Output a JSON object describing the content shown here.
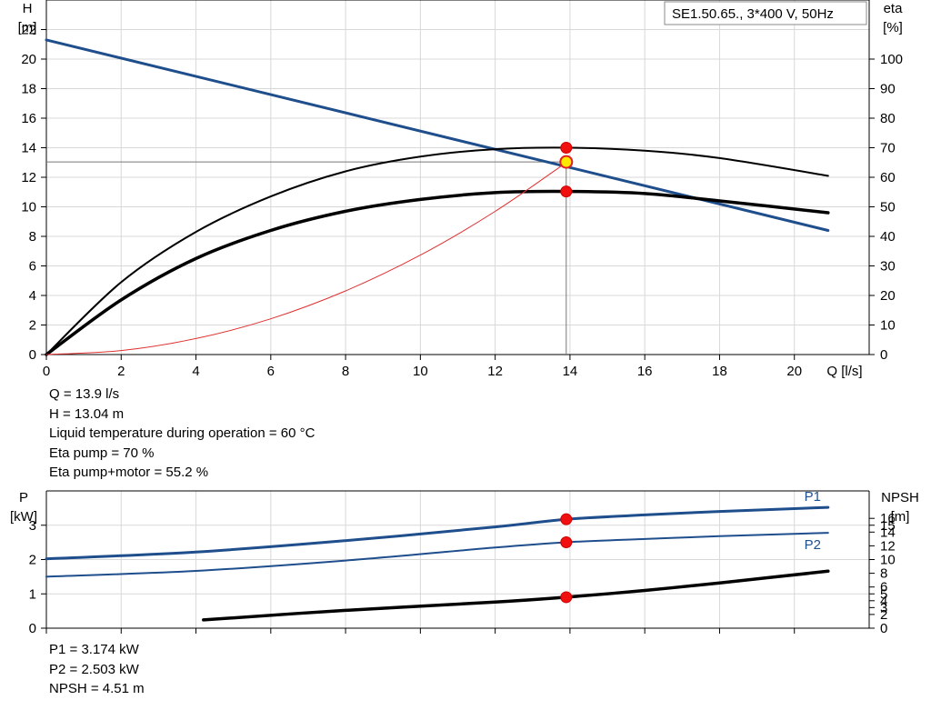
{
  "chart_data": [
    {
      "type": "line",
      "title_box": "SE1.50.65., 3*400 V, 50Hz",
      "left_axis": {
        "label": "H",
        "unit": "[m]",
        "ylim": [
          0,
          24
        ],
        "ticks": [
          0,
          2,
          4,
          6,
          8,
          10,
          12,
          14,
          16,
          18,
          20,
          22
        ]
      },
      "right_axis": {
        "label": "eta",
        "unit": "[%]",
        "ylim": [
          0,
          120
        ],
        "ticks": [
          0,
          10,
          20,
          30,
          40,
          50,
          60,
          70,
          80,
          90,
          100
        ]
      },
      "x_axis": {
        "label": "Q [l/s]",
        "xlim": [
          0,
          22
        ],
        "ticks": [
          0,
          2,
          4,
          6,
          8,
          10,
          12,
          14,
          16,
          18,
          20
        ]
      },
      "grid": true,
      "series": [
        {
          "axis": "left",
          "color": "#1f4e8c",
          "points": [
            [
              0,
              21.3
            ],
            [
              20.9,
              8.4
            ]
          ]
        },
        {
          "axis": "right",
          "color": "#000000",
          "points": [
            [
              0,
              0
            ],
            [
              2,
              24.5
            ],
            [
              4,
              41.5
            ],
            [
              6,
              53.5
            ],
            [
              8,
              62
            ],
            [
              10,
              67
            ],
            [
              12,
              69.5
            ],
            [
              14,
              70
            ],
            [
              16,
              69
            ],
            [
              18,
              66.5
            ],
            [
              20.9,
              60.5
            ]
          ]
        },
        {
          "axis": "right",
          "color": "#000000",
          "points": [
            [
              0,
              0
            ],
            [
              2,
              18.5
            ],
            [
              4,
              32.5
            ],
            [
              6,
              42
            ],
            [
              8,
              48.5
            ],
            [
              10,
              52.5
            ],
            [
              12,
              54.8
            ],
            [
              14,
              55.2
            ],
            [
              16,
              54.5
            ],
            [
              18,
              52
            ],
            [
              20.9,
              48
            ]
          ]
        },
        {
          "axis": "left",
          "color": "#e03030",
          "points": [
            [
              0,
              0
            ],
            [
              2,
              0.27
            ],
            [
              4,
              1.08
            ],
            [
              6,
              2.42
            ],
            [
              8,
              4.31
            ],
            [
              10,
              6.73
            ],
            [
              12,
              9.69
            ],
            [
              13.9,
              13.0
            ]
          ]
        }
      ],
      "markers": [
        {
          "x": 13.9,
          "y": 13.04,
          "axis": "left",
          "style": "operating-point"
        },
        {
          "x": 13.9,
          "y": 70,
          "axis": "right",
          "style": "red"
        },
        {
          "x": 13.9,
          "y": 55.2,
          "axis": "right",
          "style": "red"
        }
      ],
      "duty_point": {
        "q": 13.9,
        "h": 13.04
      }
    },
    {
      "type": "line",
      "left_axis": {
        "label": "P",
        "unit": "[kW]",
        "ylim": [
          0,
          4
        ],
        "ticks": [
          0,
          1,
          2,
          3
        ]
      },
      "right_axis": {
        "label": "NPSH",
        "unit": "[m]",
        "ylim": [
          0,
          20
        ],
        "ticks": [
          0,
          2,
          3,
          4,
          5,
          6,
          8,
          10,
          12,
          14,
          15,
          16
        ]
      },
      "x_axis": {
        "xlim": [
          0,
          22
        ],
        "ticks": [
          0,
          2,
          4,
          6,
          8,
          10,
          12,
          14,
          16,
          18,
          20
        ]
      },
      "grid": true,
      "series": [
        {
          "name": "P1",
          "axis": "left",
          "color": "#1f4e8c",
          "points": [
            [
              0,
              2.02
            ],
            [
              4,
              2.22
            ],
            [
              8,
              2.55
            ],
            [
              12,
              2.95
            ],
            [
              13.9,
              3.174
            ],
            [
              16,
              3.3
            ],
            [
              18,
              3.4
            ],
            [
              20.9,
              3.52
            ]
          ]
        },
        {
          "name": "P2",
          "axis": "left",
          "color": "#1f4e8c",
          "points": [
            [
              0,
              1.5
            ],
            [
              4,
              1.67
            ],
            [
              8,
              1.97
            ],
            [
              12,
              2.35
            ],
            [
              13.9,
              2.503
            ],
            [
              16,
              2.6
            ],
            [
              18,
              2.68
            ],
            [
              20.9,
              2.78
            ]
          ]
        },
        {
          "axis": "right",
          "color": "#000000",
          "points": [
            [
              4.2,
              1.2
            ],
            [
              8,
              2.6
            ],
            [
              12,
              3.8
            ],
            [
              13.9,
              4.51
            ],
            [
              16,
              5.5
            ],
            [
              18,
              6.6
            ],
            [
              20.9,
              8.3
            ]
          ]
        }
      ],
      "markers": [
        {
          "x": 13.9,
          "y": 3.174,
          "axis": "left",
          "style": "red"
        },
        {
          "x": 13.9,
          "y": 2.503,
          "axis": "left",
          "style": "red"
        },
        {
          "x": 13.9,
          "y": 4.51,
          "axis": "right",
          "style": "red"
        }
      ]
    }
  ],
  "info_top": [
    "Q = 13.9 l/s",
    "H = 13.04 m",
    "Liquid temperature during operation = 60 °C",
    "Eta pump = 70 %",
    "Eta pump+motor = 55.2 %"
  ],
  "info_bottom": [
    "P1 = 3.174 kW",
    "P2 = 2.503 kW",
    "NPSH = 4.51 m"
  ]
}
